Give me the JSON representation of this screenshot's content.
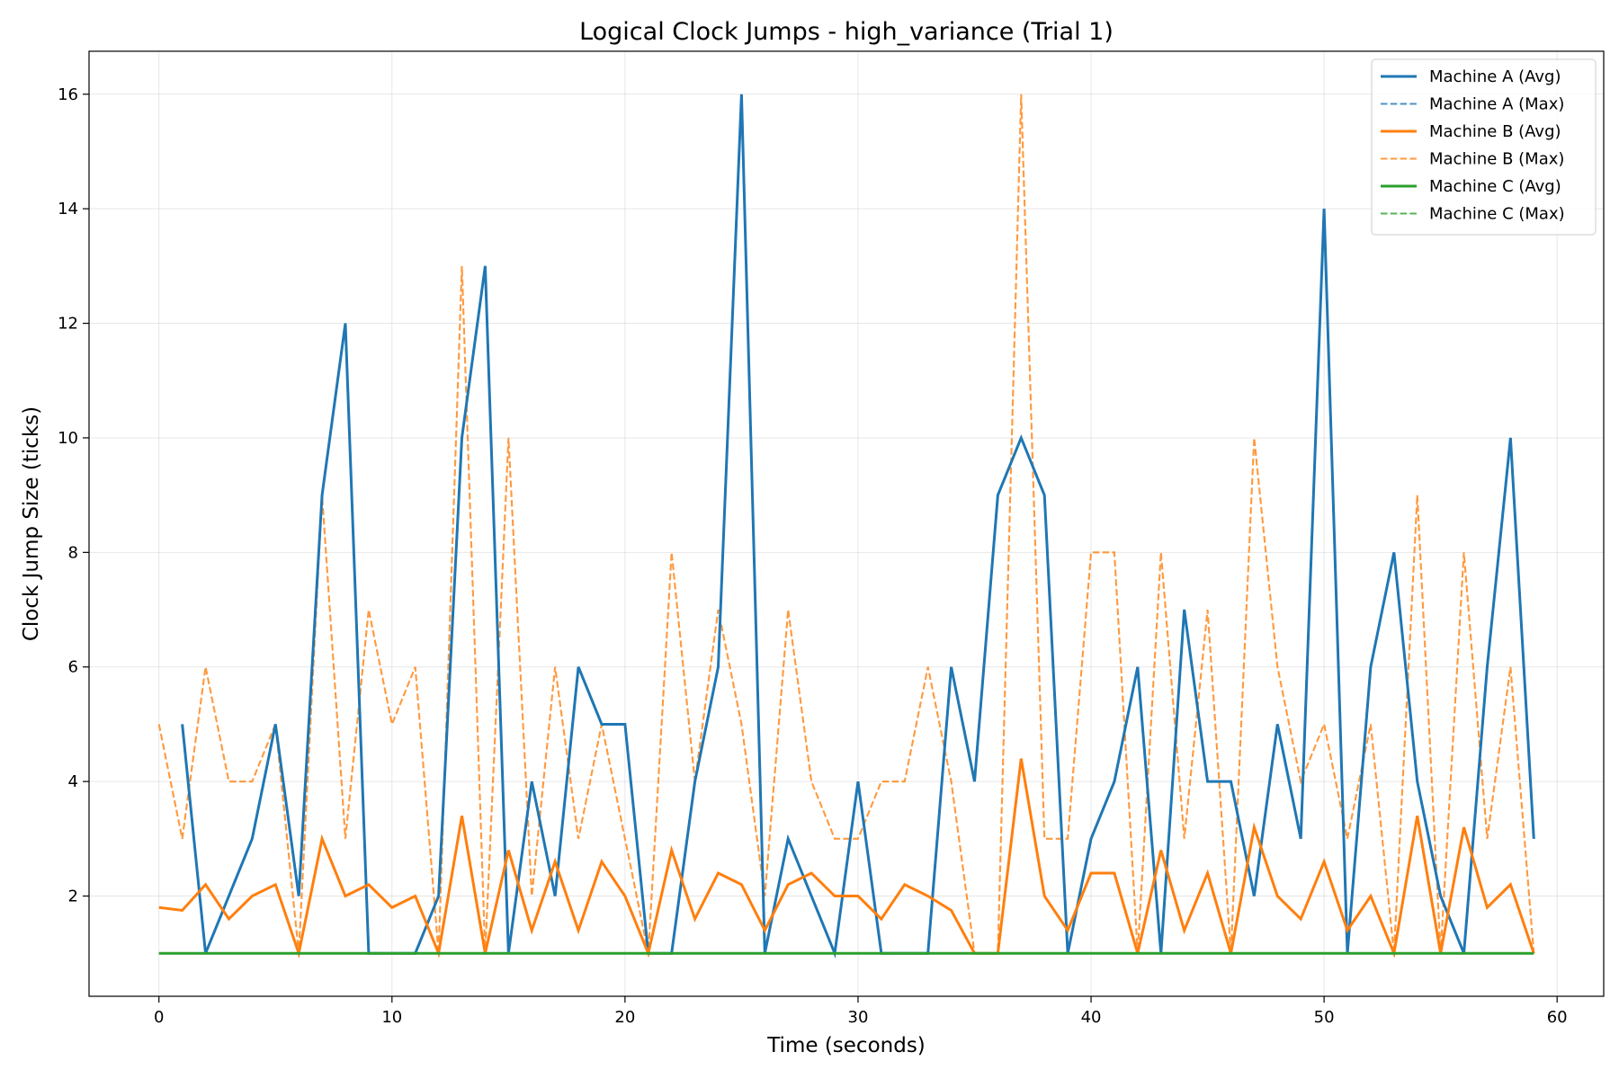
{
  "chart_data": {
    "type": "line",
    "title": "Logical Clock Jumps - high_variance (Trial 1)",
    "xlabel": "Time (seconds)",
    "ylabel": "Clock Jump Size (ticks)",
    "xlim": [
      -3,
      62
    ],
    "ylim": [
      0.25,
      16.75
    ],
    "xticks": [
      0,
      10,
      20,
      30,
      40,
      50,
      60
    ],
    "yticks": [
      2,
      4,
      6,
      8,
      10,
      12,
      14,
      16
    ],
    "grid": true,
    "legend_position": "top-right",
    "series": [
      {
        "name": "Machine A (Avg)",
        "color": "#1f77b4",
        "style": "solid",
        "x": [
          1,
          2,
          3,
          4,
          5,
          6,
          7,
          8,
          9,
          10,
          11,
          12,
          13,
          14,
          15,
          16,
          17,
          18,
          19,
          20,
          21,
          22,
          23,
          24,
          25,
          26,
          27,
          28,
          29,
          30,
          31,
          32,
          33,
          34,
          35,
          36,
          37,
          38,
          39,
          40,
          41,
          42,
          43,
          44,
          45,
          46,
          47,
          48,
          49,
          50,
          51,
          52,
          53,
          54,
          55,
          56,
          57,
          58,
          59
        ],
        "y": [
          5,
          1,
          2,
          3,
          5,
          2,
          9,
          12,
          1,
          1,
          1,
          2,
          10,
          13,
          1,
          4,
          2,
          6,
          5,
          5,
          1,
          1,
          4,
          6,
          16,
          1,
          3,
          2,
          1,
          4,
          1,
          1,
          1,
          6,
          4,
          9,
          10,
          9,
          1,
          3,
          4,
          6,
          1,
          7,
          4,
          4,
          2,
          5,
          3,
          14,
          1,
          6,
          8,
          4,
          2,
          1,
          6,
          10,
          3
        ]
      },
      {
        "name": "Machine A (Max)",
        "color": "#1f77b4",
        "style": "dashed",
        "x": [
          1,
          2,
          3,
          4,
          5,
          6,
          7,
          8,
          9,
          10,
          11,
          12,
          13,
          14,
          15,
          16,
          17,
          18,
          19,
          20,
          21,
          22,
          23,
          24,
          25,
          26,
          27,
          28,
          29,
          30,
          31,
          32,
          33,
          34,
          35,
          36,
          37,
          38,
          39,
          40,
          41,
          42,
          43,
          44,
          45,
          46,
          47,
          48,
          49,
          50,
          51,
          52,
          53,
          54,
          55,
          56,
          57,
          58,
          59
        ],
        "y": [
          5,
          1,
          2,
          3,
          5,
          2,
          9,
          12,
          1,
          1,
          1,
          2,
          10,
          13,
          1,
          4,
          2,
          6,
          5,
          5,
          1,
          1,
          4,
          6,
          16,
          1,
          3,
          2,
          1,
          4,
          1,
          1,
          1,
          6,
          4,
          9,
          10,
          9,
          1,
          3,
          4,
          6,
          1,
          7,
          4,
          4,
          2,
          5,
          3,
          14,
          1,
          6,
          8,
          4,
          2,
          1,
          6,
          10,
          3
        ]
      },
      {
        "name": "Machine B (Avg)",
        "color": "#ff7f0e",
        "style": "solid",
        "x": [
          0,
          1,
          2,
          3,
          4,
          5,
          6,
          7,
          8,
          9,
          10,
          11,
          12,
          13,
          14,
          15,
          16,
          17,
          18,
          19,
          20,
          21,
          22,
          23,
          24,
          25,
          26,
          27,
          28,
          29,
          30,
          31,
          32,
          33,
          34,
          35,
          36,
          37,
          38,
          39,
          40,
          41,
          42,
          43,
          44,
          45,
          46,
          47,
          48,
          49,
          50,
          51,
          52,
          53,
          54,
          55,
          56,
          57,
          58,
          59
        ],
        "y": [
          1.8,
          1.75,
          2.2,
          1.6,
          2,
          2.2,
          1,
          3,
          2,
          2.2,
          1.8,
          2,
          1,
          3.4,
          1,
          2.8,
          1.4,
          2.6,
          1.4,
          2.6,
          2,
          1,
          2.8,
          1.6,
          2.4,
          2.2,
          1.4,
          2.2,
          2.4,
          2,
          2,
          1.6,
          2.2,
          2,
          1.75,
          1,
          1,
          4.4,
          2,
          1.4,
          2.4,
          2.4,
          1,
          2.8,
          1.4,
          2.4,
          1,
          3.2,
          2,
          1.6,
          2.6,
          1.4,
          2,
          1,
          3.4,
          1,
          3.2,
          1.8,
          2.2,
          1
        ]
      },
      {
        "name": "Machine B (Max)",
        "color": "#ff7f0e",
        "style": "dashed",
        "x": [
          0,
          1,
          2,
          3,
          4,
          5,
          6,
          7,
          8,
          9,
          10,
          11,
          12,
          13,
          14,
          15,
          16,
          17,
          18,
          19,
          20,
          21,
          22,
          23,
          24,
          25,
          26,
          27,
          28,
          29,
          30,
          31,
          32,
          33,
          34,
          35,
          36,
          37,
          38,
          39,
          40,
          41,
          42,
          43,
          44,
          45,
          46,
          47,
          48,
          49,
          50,
          51,
          52,
          53,
          54,
          55,
          56,
          57,
          58,
          59
        ],
        "y": [
          5,
          3,
          6,
          4,
          4,
          5,
          1,
          9,
          3,
          7,
          5,
          6,
          1,
          13,
          1,
          10,
          2,
          6,
          3,
          5,
          3,
          1,
          8,
          4,
          7,
          5,
          2,
          7,
          4,
          3,
          3,
          4,
          4,
          6,
          4,
          1,
          1,
          16,
          3,
          3,
          8,
          8,
          1,
          8,
          3,
          7,
          1,
          10,
          6,
          4,
          5,
          3,
          5,
          1,
          9,
          1,
          8,
          3,
          6,
          1
        ]
      },
      {
        "name": "Machine C (Avg)",
        "color": "#2ca02c",
        "style": "solid",
        "x": [
          0,
          59
        ],
        "y": [
          1,
          1
        ]
      },
      {
        "name": "Machine C (Max)",
        "color": "#2ca02c",
        "style": "dashed",
        "x": [
          0,
          59
        ],
        "y": [
          1,
          1
        ]
      }
    ]
  }
}
